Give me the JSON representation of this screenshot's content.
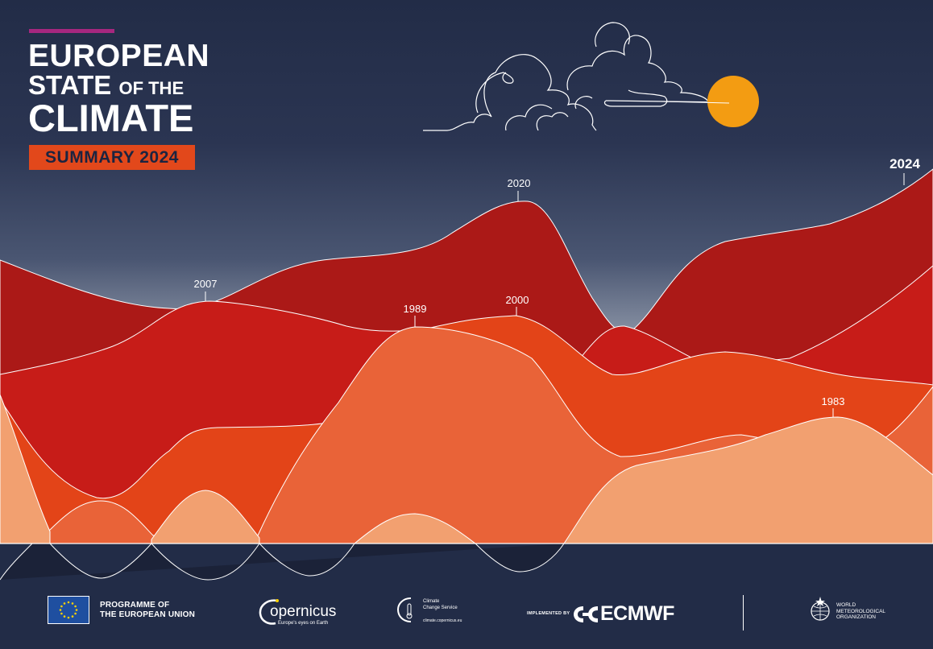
{
  "title": {
    "line1": "EUROPEAN",
    "line2_a": "STATE",
    "line2_b": "OF THE",
    "line3": "CLIMATE",
    "badge": "SUMMARY 2024"
  },
  "peak_labels": {
    "y2020": "2020",
    "y2024": "2024",
    "y2007": "2007",
    "y1989": "1989",
    "y2000": "2000",
    "y1983": "1983"
  },
  "footer": {
    "eu_line1": "PROGRAMME OF",
    "eu_line2": "THE EUROPEAN UNION",
    "copernicus_name": "opernicus",
    "copernicus_tag": "Europe's eyes on Earth",
    "c3s_line1": "Climate",
    "c3s_line2": "Change Service",
    "c3s_url": "climate.copernicus.eu",
    "implemented_by": "IMPLEMENTED BY",
    "ecmwf": "ECMWF",
    "wmo_line1": "WORLD",
    "wmo_line2": "METEOROLOGICAL",
    "wmo_line3": "ORGANIZATION"
  },
  "colors": {
    "sky_top": "#222c47",
    "sky_horizon": "#8a93a5",
    "band_darkred": "#ab1917",
    "band_red": "#c71c18",
    "band_orange": "#e34418",
    "band_coral": "#e96338",
    "band_peach": "#f2a070",
    "sun": "#f39c12",
    "accent_bar": "#a6277f"
  }
}
